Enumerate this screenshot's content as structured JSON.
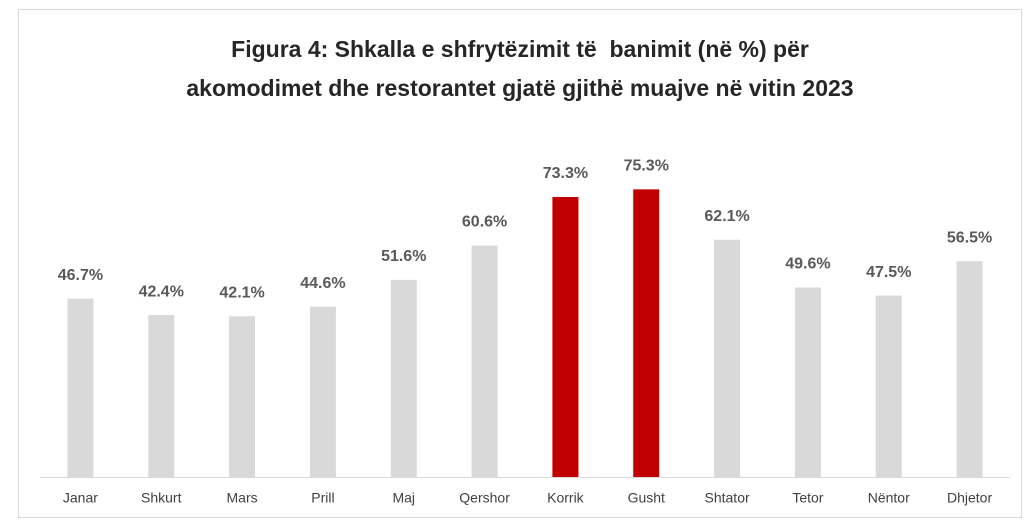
{
  "chart_data": {
    "type": "bar",
    "title": [
      "Figura 4: Shkalla e shfrytëzimit të  banimit (në %) për",
      "akomodimet dhe restorantet gjatë gjithë muajve në vitin 2023"
    ],
    "categories": [
      "Janar",
      "Shkurt",
      "Mars",
      "Prill",
      "Maj",
      "Qershor",
      "Korrik",
      "Gusht",
      "Shtator",
      "Tetor",
      "Nëntor",
      "Dhjetor"
    ],
    "values": [
      46.7,
      42.4,
      42.1,
      44.6,
      51.6,
      60.6,
      73.3,
      75.3,
      62.1,
      49.6,
      47.5,
      56.5
    ],
    "value_labels": [
      "46.7%",
      "42.4%",
      "42.1%",
      "44.6%",
      "51.6%",
      "60.6%",
      "73.3%",
      "75.3%",
      "62.1%",
      "49.6%",
      "47.5%",
      "56.5%"
    ],
    "colors": [
      "#d9d9d9",
      "#d9d9d9",
      "#d9d9d9",
      "#d9d9d9",
      "#d9d9d9",
      "#d9d9d9",
      "#c00000",
      "#c00000",
      "#d9d9d9",
      "#d9d9d9",
      "#d9d9d9",
      "#d9d9d9"
    ],
    "ylim": [
      0,
      100
    ]
  }
}
